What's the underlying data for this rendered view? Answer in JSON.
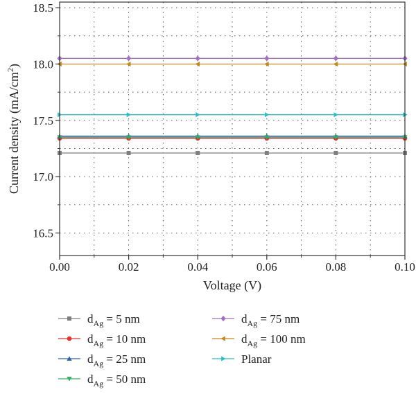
{
  "chart_data": {
    "type": "line",
    "xlabel": "Voltage (V)",
    "ylabel": "Current density (mA/cm",
    "ylabel_sup": "2",
    "ylabel_close": ")",
    "xlim": [
      0.0,
      0.1
    ],
    "ylim": [
      16.3,
      18.55
    ],
    "x": [
      0.0,
      0.02,
      0.04,
      0.06,
      0.08,
      0.1
    ],
    "x_tick_values": [
      0.0,
      0.02,
      0.04,
      0.06,
      0.08,
      0.1
    ],
    "x_tick_labels": [
      "0.00",
      "0.02",
      "0.04",
      "0.06",
      "0.08",
      "0.10"
    ],
    "y_tick_values": [
      16.5,
      17.0,
      17.5,
      18.0,
      18.5
    ],
    "y_tick_labels": [
      "16.5",
      "17.0",
      "17.5",
      "18.0",
      "18.5"
    ],
    "grid": true,
    "legend_placement": "bottom",
    "series": [
      {
        "name": "5 nm",
        "prefix": "d",
        "sub": "Ag",
        "eq": " = ",
        "color": "#7f7f7f",
        "marker": "square",
        "values": [
          17.21,
          17.21,
          17.21,
          17.21,
          17.21,
          17.21
        ]
      },
      {
        "name": "10 nm",
        "prefix": "d",
        "sub": "Ag",
        "eq": " = ",
        "color": "#e8302f",
        "marker": "circle",
        "values": [
          17.34,
          17.34,
          17.34,
          17.34,
          17.34,
          17.34
        ]
      },
      {
        "name": "25 nm",
        "prefix": "d",
        "sub": "Ag",
        "eq": " = ",
        "color": "#2f5fb5",
        "marker": "triangle-up",
        "values": [
          17.36,
          17.36,
          17.36,
          17.36,
          17.36,
          17.36
        ]
      },
      {
        "name": "50 nm",
        "prefix": "d",
        "sub": "Ag",
        "eq": " = ",
        "color": "#2fae5b",
        "marker": "triangle-down",
        "values": [
          17.35,
          17.35,
          17.35,
          17.35,
          17.35,
          17.35
        ]
      },
      {
        "name": "75 nm",
        "prefix": "d",
        "sub": "Ag",
        "eq": " = ",
        "color": "#a070c8",
        "marker": "diamond",
        "values": [
          18.05,
          18.05,
          18.05,
          18.05,
          18.05,
          18.05
        ]
      },
      {
        "name": "100 nm",
        "prefix": "d",
        "sub": "Ag",
        "eq": " = ",
        "color": "#c48a1a",
        "marker": "triangle-left",
        "values": [
          18.0,
          18.0,
          18.0,
          18.0,
          18.0,
          18.0
        ]
      },
      {
        "name": "Planar",
        "prefix": "",
        "sub": "",
        "eq": "",
        "color": "#27c0c8",
        "marker": "triangle-right",
        "values": [
          17.55,
          17.55,
          17.55,
          17.55,
          17.55,
          17.55
        ]
      }
    ]
  }
}
